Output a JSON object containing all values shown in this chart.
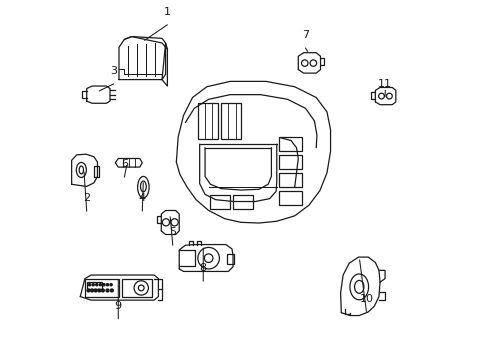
{
  "bg_color": "#ffffff",
  "line_color": "#1a1a1a",
  "figsize": [
    4.89,
    3.6
  ],
  "dpi": 100,
  "parts": [
    {
      "num": "1",
      "nx": 0.285,
      "ny": 0.955
    },
    {
      "num": "2",
      "nx": 0.06,
      "ny": 0.435
    },
    {
      "num": "3",
      "nx": 0.135,
      "ny": 0.79
    },
    {
      "num": "4",
      "nx": 0.215,
      "ny": 0.435
    },
    {
      "num": "5",
      "nx": 0.3,
      "ny": 0.34
    },
    {
      "num": "6",
      "nx": 0.165,
      "ny": 0.53
    },
    {
      "num": "7",
      "nx": 0.67,
      "ny": 0.89
    },
    {
      "num": "8",
      "nx": 0.385,
      "ny": 0.24
    },
    {
      "num": "9",
      "nx": 0.148,
      "ny": 0.135
    },
    {
      "num": "10",
      "nx": 0.84,
      "ny": 0.155
    },
    {
      "num": "11",
      "nx": 0.892,
      "ny": 0.755
    }
  ],
  "lw": 0.9,
  "label_fontsize": 8.0
}
